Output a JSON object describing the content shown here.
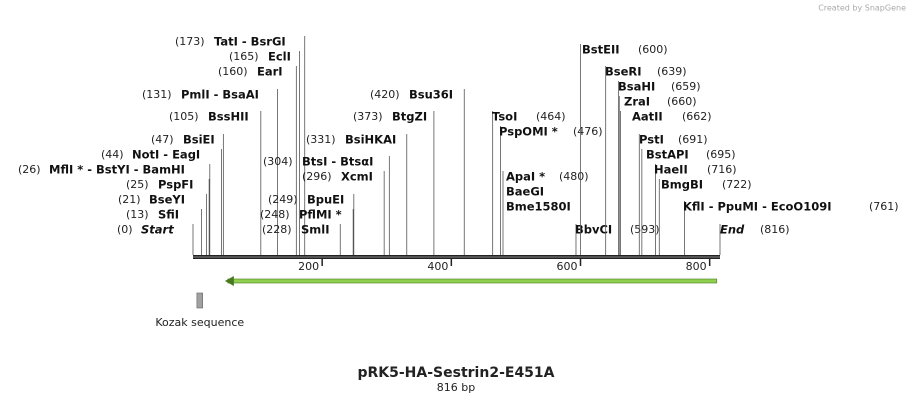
{
  "watermark": "Created by SnapGene",
  "title": "pRK5-HA-Sestrin2-E451A",
  "subtitle": "816 bp",
  "ruler": {
    "range": [
      0,
      816
    ],
    "ticks": [
      200,
      400,
      600,
      800
    ]
  },
  "orf": {
    "start": 54,
    "end": 811,
    "color": "#8fd14f"
  },
  "features": [
    {
      "label": "Kozak sequence",
      "start": 6,
      "end": 15,
      "color": "#a0a0a0"
    }
  ],
  "sites": [
    {
      "value": 0,
      "label": "(0)",
      "names": [
        "Start"
      ]
    },
    {
      "value": 13,
      "label": "(13)",
      "names": [
        "SfiI"
      ]
    },
    {
      "value": 21,
      "label": "(21)",
      "names": [
        "BseYI"
      ]
    },
    {
      "value": 25,
      "label": "(25)",
      "names": [
        "PspFI"
      ]
    },
    {
      "value": 26,
      "label": "(26)",
      "names": [
        "MflI * - BstYI  - BamHI"
      ]
    },
    {
      "value": 44,
      "label": "(44)",
      "names": [
        "NotI  - EagI"
      ]
    },
    {
      "value": 47,
      "label": "(47)",
      "names": [
        "BsiEI"
      ]
    },
    {
      "value": 105,
      "label": "(105)",
      "names": [
        "BssHII"
      ]
    },
    {
      "value": 131,
      "label": "(131)",
      "names": [
        "PmlI  - BsaAI"
      ]
    },
    {
      "value": 160,
      "label": "(160)",
      "names": [
        "EarI"
      ]
    },
    {
      "value": 165,
      "label": "(165)",
      "names": [
        "EclI"
      ]
    },
    {
      "value": 173,
      "label": "(173)",
      "names": [
        "TatI  - BsrGI"
      ]
    },
    {
      "value": 228,
      "label": "(228)",
      "names": [
        "SmlI"
      ]
    },
    {
      "value": 248,
      "label": "(248)",
      "names": [
        "PflMI *"
      ]
    },
    {
      "value": 249,
      "label": "(249)",
      "names": [
        "BpuEI"
      ]
    },
    {
      "value": 296,
      "label": "(296)",
      "names": [
        "XcmI"
      ]
    },
    {
      "value": 304,
      "label": "(304)",
      "names": [
        "BtsI  - BtsαI"
      ]
    },
    {
      "value": 331,
      "label": "(331)",
      "names": [
        "BsiHKAI"
      ]
    },
    {
      "value": 373,
      "label": "(373)",
      "names": [
        "BtgZI"
      ]
    },
    {
      "value": 420,
      "label": "(420)",
      "names": [
        "Bsu36I"
      ]
    },
    {
      "value": 464,
      "label": "(464)",
      "names": [
        "TsoI"
      ]
    },
    {
      "value": 476,
      "label": "(476)",
      "names": [
        "PspOMI *"
      ]
    },
    {
      "value": 480,
      "label": "(480)",
      "names": [
        "ApaI *",
        "BaeGI",
        "Bme1580I"
      ]
    },
    {
      "value": 593,
      "label": "(593)",
      "names": [
        "BbvCI"
      ]
    },
    {
      "value": 600,
      "label": "(600)",
      "names": [
        "BstEII"
      ]
    },
    {
      "value": 639,
      "label": "(639)",
      "names": [
        "BseRI"
      ]
    },
    {
      "value": 659,
      "label": "(659)",
      "names": [
        "BsaHI"
      ]
    },
    {
      "value": 660,
      "label": "(660)",
      "names": [
        "ZraI"
      ]
    },
    {
      "value": 662,
      "label": "(662)",
      "names": [
        "AatII"
      ]
    },
    {
      "value": 691,
      "label": "(691)",
      "names": [
        "PstI"
      ]
    },
    {
      "value": 695,
      "label": "(695)",
      "names": [
        "BstAPI"
      ]
    },
    {
      "value": 716,
      "label": "(716)",
      "names": [
        "HaeII"
      ]
    },
    {
      "value": 722,
      "label": "(722)",
      "names": [
        "BmgBI"
      ]
    },
    {
      "value": 761,
      "label": "(761)",
      "names": [
        "KflI  - PpuMI  - EcoO109I"
      ]
    },
    {
      "value": 816,
      "label": "(816)",
      "names": [
        "End"
      ]
    }
  ]
}
